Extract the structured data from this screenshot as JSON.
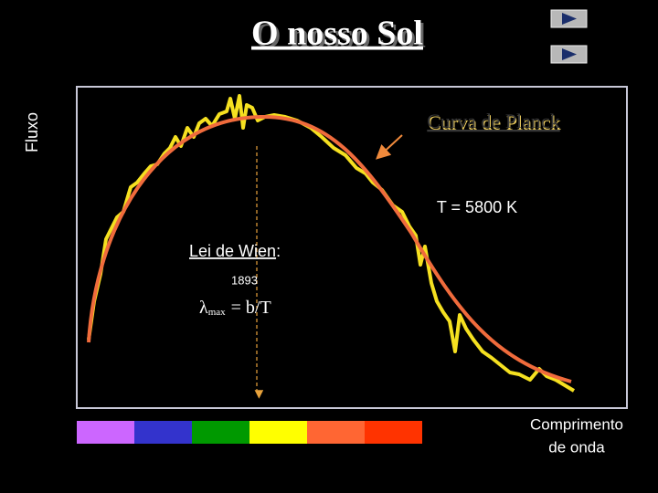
{
  "slide": {
    "title": "O nosso Sol",
    "y_label": "Fluxo",
    "curve_label": "Curva de Planck",
    "temperature": "T = 5800 K",
    "law": "Lei de Wien",
    "law_colon": ":",
    "year": "1893",
    "formula_lambda": "λ",
    "formula_subscript": "max",
    "formula_rest": "= b/T",
    "x_label_line1": "Comprimento",
    "x_label_line2": "de onda"
  }
}
